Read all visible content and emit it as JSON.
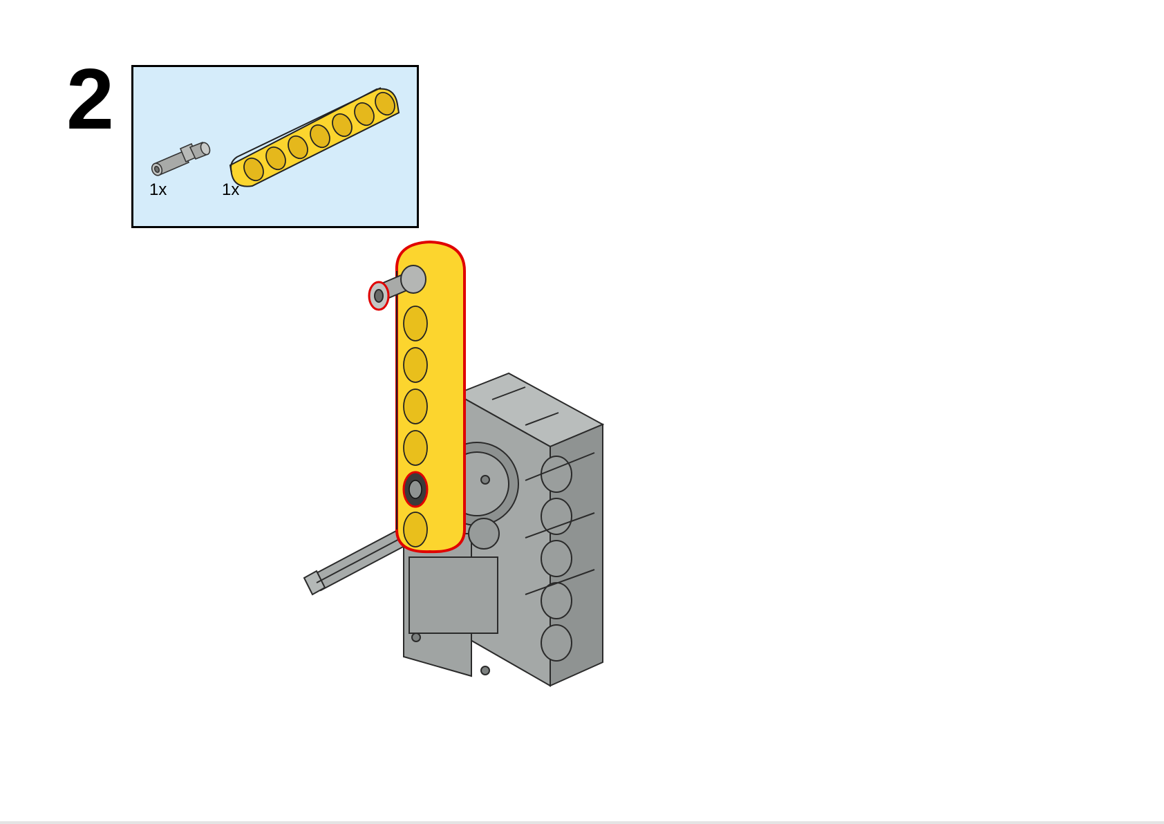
{
  "step": {
    "number": "2"
  },
  "parts_list": {
    "items": [
      {
        "name": "pin-with-bushing",
        "quantity": "1x",
        "color": "#a8aaa8"
      },
      {
        "name": "beam-7-holes",
        "quantity": "1x",
        "color": "#fcd52e"
      }
    ]
  },
  "colors": {
    "parts_background": "#d5ecfa",
    "beam_yellow": "#fcd52e",
    "motor_gray": "#a7abaa",
    "highlight_red": "#e00000"
  }
}
